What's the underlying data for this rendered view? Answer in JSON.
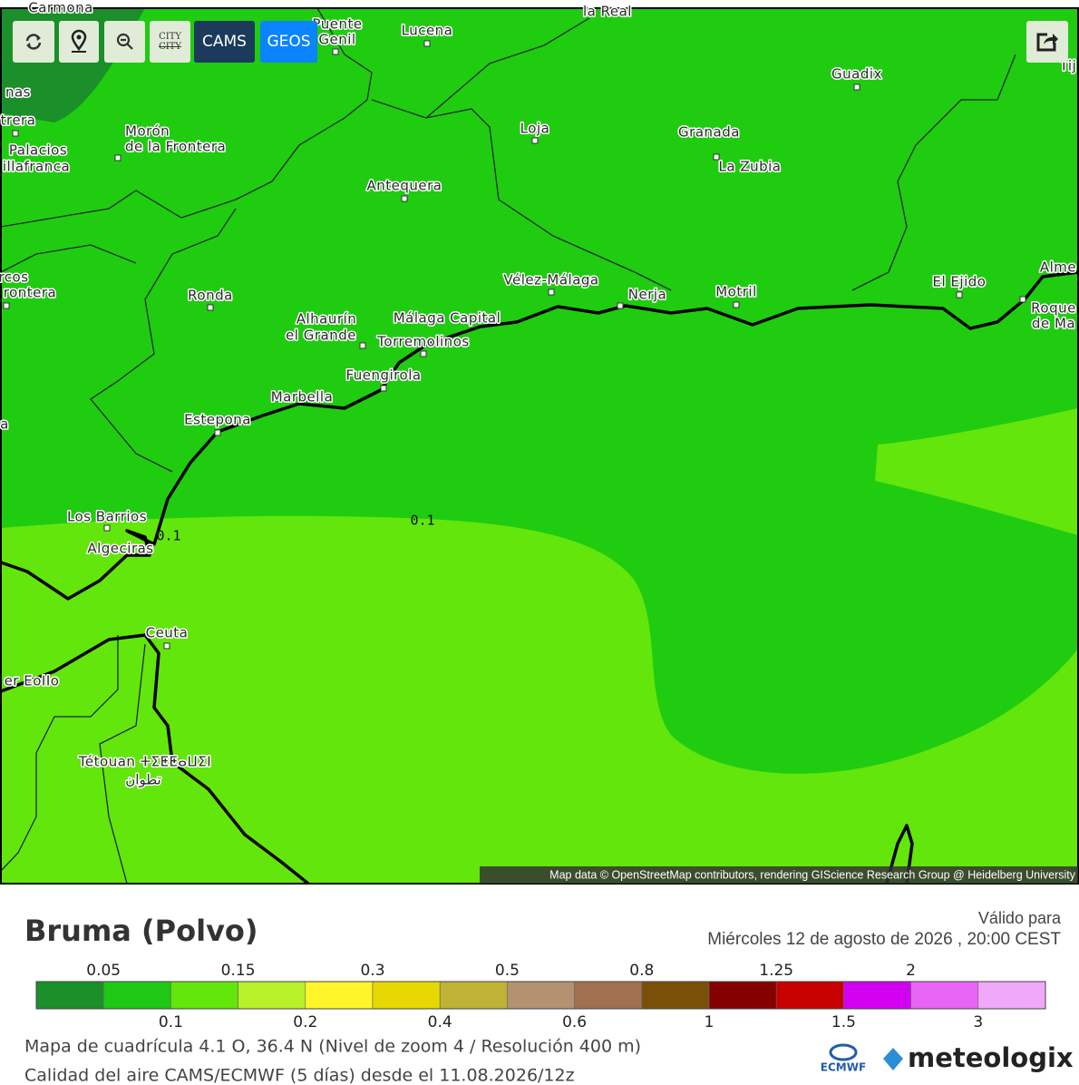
{
  "toolbar": {
    "buttons": [
      "CITY",
      "CAMS",
      "GEOS"
    ]
  },
  "map": {
    "places": [
      "Carmona",
      "Puente",
      "Genil",
      "Lucena",
      "la Real",
      "Guadix",
      "Tij",
      "nas",
      "trera",
      "Palacios",
      "illafranca",
      "Morón",
      "de la Frontera",
      "Loja",
      "Granada",
      "La Zubia",
      "Antequera",
      "rcos",
      "rontera",
      "Ronda",
      "Vélez-Málaga",
      "Nerja",
      "Motril",
      "El Ejido",
      "Alme",
      "Roque",
      "de Ma",
      "Alhaurín",
      "el Grande",
      "Málaga Capital",
      "Torremolinos",
      "Fuengirola",
      "Marbella",
      "Estepona",
      "a",
      "Los Barrios",
      "Algeciras",
      "Ceuta",
      "er EoIIo",
      "Tétouan ⵜⵉⵟⵟⴰⵡⵉⵏ",
      "تطوان"
    ],
    "contour_labels": [
      "0.1",
      "0.1"
    ],
    "attribution": "Map data © OpenStreetMap contributors, rendering GIScience Research Group @ Heidelberg University"
  },
  "footer": {
    "title": "Bruma (Polvo)",
    "valid_label": "Válido para",
    "valid_time": "Miércoles 12 de agosto de 2026 ,  20:00 CEST",
    "legend": {
      "colors": [
        "#1a8f2a",
        "#1ec814",
        "#63e60c",
        "#b8f02a",
        "#fff52a",
        "#e6d800",
        "#bfb234",
        "#b39272",
        "#a07050",
        "#7a5008",
        "#850000",
        "#c80000",
        "#d200f0",
        "#e864f4",
        "#f0a8f8"
      ],
      "ticks": [
        "0.05",
        "0.1",
        "0.15",
        "0.2",
        "0.3",
        "0.4",
        "0.5",
        "0.6",
        "0.8",
        "1",
        "1.25",
        "1.5",
        "2",
        "3"
      ]
    },
    "info_lines": [
      "Mapa de cuadrícula 4.1 O, 36.4 N (Nivel de zoom 4 / Resolución 400 m)",
      "Calidad del aire CAMS/ECMWF (5 días) desde el 11.08.2026/12z"
    ],
    "ecmwf": "ECMWF",
    "brand": "meteologix"
  }
}
